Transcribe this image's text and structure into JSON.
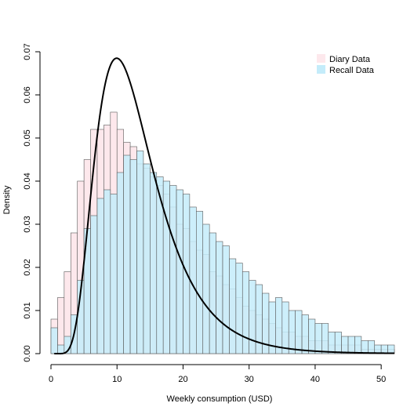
{
  "chart_data": {
    "type": "bar",
    "title": "",
    "xlabel": "Weekly consumption (USD)",
    "ylabel": "Density",
    "xlim": [
      0,
      52
    ],
    "ylim": [
      0,
      0.07
    ],
    "x_ticks": [
      0,
      10,
      20,
      30,
      40,
      50
    ],
    "y_ticks": [
      0,
      0.01,
      0.02,
      0.03,
      0.04,
      0.05,
      0.06,
      0.07
    ],
    "y_tick_labels": [
      "0.00",
      "0.01",
      "0.02",
      "0.03",
      "0.04",
      "0.05",
      "0.06",
      "0.07"
    ],
    "bin_width": 1,
    "bin_start": 0,
    "legend_position": "top-right",
    "series": [
      {
        "name": "Diary Data",
        "color": "#fde8ec",
        "values": [
          0.008,
          0.013,
          0.019,
          0.028,
          0.04,
          0.045,
          0.052,
          0.052,
          0.053,
          0.056,
          0.052,
          0.049,
          0.048,
          0.044,
          0.043,
          0.041,
          0.039,
          0.037,
          0.034,
          0.03,
          0.029,
          0.026,
          0.024,
          0.023,
          0.019,
          0.018,
          0.016,
          0.015,
          0.013,
          0.011,
          0.01,
          0.009,
          0.008,
          0.007,
          0.006,
          0.005,
          0.005,
          0.004,
          0.004,
          0.003,
          0.003,
          0.003,
          0.002,
          0.002,
          0.002,
          0.002,
          0.002,
          0.001,
          0.001,
          0.001,
          0.001,
          0.001
        ]
      },
      {
        "name": "Recall Data",
        "color": "#c4ecfa",
        "values": [
          0.006,
          0.002,
          0.004,
          0.009,
          0.017,
          0.029,
          0.032,
          0.036,
          0.038,
          0.037,
          0.042,
          0.046,
          0.045,
          0.047,
          0.044,
          0.042,
          0.041,
          0.04,
          0.039,
          0.038,
          0.037,
          0.034,
          0.033,
          0.03,
          0.028,
          0.026,
          0.025,
          0.022,
          0.021,
          0.019,
          0.017,
          0.016,
          0.014,
          0.012,
          0.013,
          0.012,
          0.01,
          0.01,
          0.009,
          0.008,
          0.007,
          0.007,
          0.005,
          0.005,
          0.004,
          0.004,
          0.004,
          0.003,
          0.003,
          0.002,
          0.002,
          0.002
        ]
      }
    ],
    "curve": {
      "type": "lognormal-density",
      "color": "#000000",
      "peak_x": 10.8,
      "peak_y": 0.0685,
      "meanlog": 2.5,
      "sdlog": 0.45
    }
  }
}
